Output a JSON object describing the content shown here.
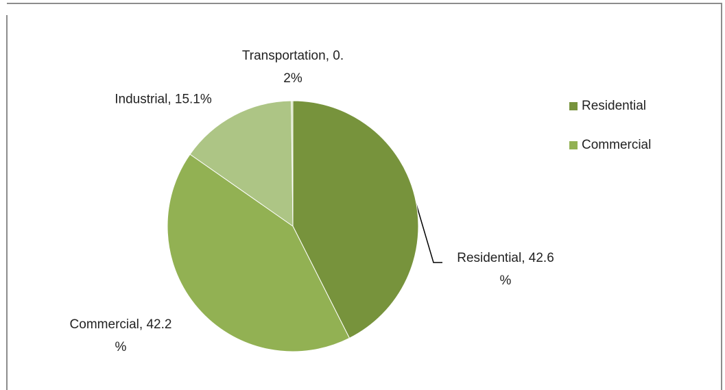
{
  "chart_data": {
    "type": "pie",
    "categories": [
      "Residential",
      "Commercial",
      "Industrial",
      "Transportation"
    ],
    "values": [
      42.6,
      42.2,
      15.1,
      0.2
    ],
    "value_labels": [
      "Residential, 42.6\n%",
      "Commercial, 42.2\n%",
      "Industrial, 15.1%",
      "Transportation, 0.\n2%"
    ],
    "colors": [
      "#77933c",
      "#92b153",
      "#adc585",
      "#cddcae"
    ],
    "legend": "right"
  }
}
